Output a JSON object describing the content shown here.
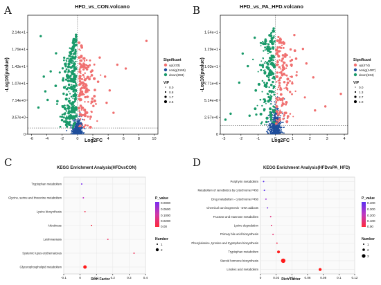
{
  "panels": {
    "A": {
      "letter": "A",
      "title": "HFD_vs_CON.volcano",
      "xlabel": "Log2FC",
      "ylabel": "-Log10(pvalue)",
      "x_ticks": [
        "-6",
        "-4",
        "-2",
        "0",
        "2",
        "4",
        "6",
        "8",
        "10"
      ],
      "y_ticks": [
        "0",
        "3.57e+0",
        "7.14e+0",
        "1.07e+1",
        "1.43e+1",
        "1.79e+1",
        "2.14e+1"
      ],
      "legend": {
        "sig_title": "Significant",
        "sig_items": [
          {
            "label": "up(433)",
            "color": "#f07070"
          },
          {
            "label": "nosig(1169)",
            "color": "#1f4e9c"
          },
          {
            "label": "down(893)",
            "color": "#1a9a6a"
          }
        ],
        "vip_title": "VIP",
        "vip_items": [
          "0.0",
          "0.8",
          "1.7",
          "2.5"
        ]
      }
    },
    "B": {
      "letter": "B",
      "title": "HFD_vs_PA_HFD.volcano",
      "xlabel": "Log2FC",
      "ylabel": "-Log10(pvalue)",
      "x_ticks": [
        "-3",
        "-2",
        "-1",
        "0",
        "1",
        "2",
        "3",
        "4"
      ],
      "y_ticks": [
        "0",
        "2.57e+0",
        "5.14e+0",
        "7.71e+0",
        "1.03e+1",
        "1.29e+1",
        "1.54e+1"
      ],
      "legend": {
        "sig_title": "Significant",
        "sig_items": [
          {
            "label": "up(474)",
            "color": "#f07070"
          },
          {
            "label": "nosig(1487)",
            "color": "#1f4e9c"
          },
          {
            "label": "down(534)",
            "color": "#1a9a6a"
          }
        ],
        "vip_title": "VIP",
        "vip_items": [
          "0.0",
          "1.3",
          "2.7",
          "4.0"
        ]
      }
    },
    "C": {
      "letter": "C",
      "title": "KEGG Enrichment Analysis(HFDvsCON)",
      "xlabel": "Rich Factor",
      "x_ticks": [
        "-0.1",
        "0",
        "0.1",
        "0.2",
        "0.3",
        "0.4"
      ],
      "legend_p_title": "P_value",
      "legend_p_ticks": [
        "0.0000",
        "0.0500",
        "0.1000",
        "0.0200",
        "0.00"
      ],
      "legend_n_title": "Number",
      "legend_n_items": [
        "1",
        "2"
      ]
    },
    "D": {
      "letter": "D",
      "title": "KEGG Enrichment Analysis(HFDvsPA_HFD)",
      "xlabel": "Rich Factor",
      "x_ticks": [
        "0",
        "0.02",
        "0.04",
        "0.06",
        "0.08",
        "0.1",
        "0.12"
      ],
      "legend_p_title": "P_value",
      "legend_p_ticks": [
        "0.400",
        "0.300",
        "0.200",
        "0.100",
        "0.00"
      ],
      "legend_n_title": "Number",
      "legend_n_items": [
        "1",
        "2",
        "3"
      ]
    }
  },
  "chart_data": [
    {
      "type": "scatter",
      "title": "HFD_vs_CON.volcano",
      "xlabel": "Log2FC",
      "ylabel": "-Log10(pvalue)",
      "xlim": [
        -6.5,
        10.5
      ],
      "ylim": [
        0,
        25
      ],
      "series": [
        {
          "name": "up(433)",
          "color": "#f07070",
          "count": 433
        },
        {
          "name": "nosig(1169)",
          "color": "#1f4e9c",
          "count": 1169
        },
        {
          "name": "down(893)",
          "color": "#1a9a6a",
          "count": 893
        }
      ],
      "threshold_y": 1.3
    },
    {
      "type": "scatter",
      "title": "HFD_vs_PA_HFD.volcano",
      "xlabel": "Log2FC",
      "ylabel": "-Log10(pvalue)",
      "xlim": [
        -3.2,
        4.2
      ],
      "ylim": [
        0,
        18
      ],
      "series": [
        {
          "name": "up(474)",
          "color": "#f07070",
          "count": 474
        },
        {
          "name": "nosig(1487)",
          "color": "#1f4e9c",
          "count": 1487
        },
        {
          "name": "down(534)",
          "color": "#1a9a6a",
          "count": 534
        }
      ],
      "threshold_y": 1.3
    },
    {
      "type": "scatter",
      "title": "KEGG Enrichment Analysis(HFDvsCON)",
      "xlabel": "Rich Factor",
      "xlim": [
        -0.1,
        0.4
      ],
      "categories": [
        "Tryptophan metabolism",
        "Glycine, serine and threonine metabolism",
        "Lysine biosynthesis",
        "Arbutinase",
        "Leishmaniasis",
        "Systemic lupus erythematosus",
        "Glycerophospholipid metabolism"
      ],
      "rich_factor": [
        0.01,
        0.02,
        0.03,
        0.07,
        0.17,
        0.33,
        0.03
      ],
      "number": [
        1,
        1,
        1,
        1,
        1,
        1,
        2
      ],
      "colors": [
        "#7a2cf0",
        "#c030c8",
        "#f03050",
        "#f02a40",
        "#f03a6a",
        "#f0305a",
        "#ff1a1a"
      ]
    },
    {
      "type": "scatter",
      "title": "KEGG Enrichment Analysis(HFDvsPA_HFD)",
      "xlabel": "Rich Factor",
      "xlim": [
        0,
        0.12
      ],
      "categories": [
        "Porphyrin metabolism",
        "Metabolism of xenobiotics by cytochrome P450",
        "Drug metabolism - cytochrome P450",
        "Chemical carcinogenesis - DNA adducts",
        "Fructose and mannose metabolism",
        "Lysine degradation",
        "Primary bile acid biosynthesis",
        "Phenylalanine, tyrosine and tryptophan biosynthesis",
        "Tryptophan metabolism",
        "Steroid hormone biosynthesis",
        "Linoleic acid metabolism"
      ],
      "rich_factor": [
        0.004,
        0.005,
        0.007,
        0.009,
        0.013,
        0.014,
        0.016,
        0.021,
        0.023,
        0.029,
        0.076
      ],
      "number": [
        1,
        1,
        1,
        1,
        1,
        1,
        1,
        1,
        2,
        3,
        2
      ],
      "colors": [
        "#5b30f0",
        "#5b30f0",
        "#a03ad8",
        "#7a3ae0",
        "#e03080",
        "#e83070",
        "#e83070",
        "#f03050",
        "#ff2020",
        "#ff1a1a",
        "#ff1a1a"
      ]
    }
  ]
}
